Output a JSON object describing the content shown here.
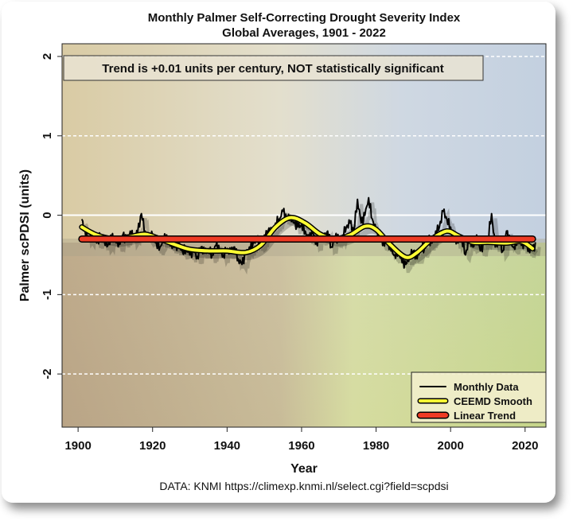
{
  "chart_data": {
    "type": "line",
    "title": "Monthly Palmer Self-Correcting Drought Severity Index",
    "subtitle": "Global Averages, 1901 - 2022",
    "xlabel": "Year",
    "ylabel": "Palmer scPDSI (units)",
    "xlim": [
      1895.7,
      2025.6
    ],
    "ylim": [
      -2.67,
      2.16
    ],
    "xticks": [
      1900,
      1920,
      1940,
      1960,
      1980,
      2000,
      2020
    ],
    "yticks": [
      2,
      1,
      0,
      -1,
      -2
    ],
    "yticks_labels": [
      "2",
      "1",
      "0",
      "-1",
      "-2"
    ],
    "grid": "horizontal dashed white, solid at zero",
    "annotation": "Trend is +0.01 units per century, NOT statistically significant",
    "source": "DATA: KNMI https://climexp.knmi.nl/select.cgi?field=scpdsi",
    "legend": {
      "placement": "bottom-right",
      "entries": [
        "Monthly Data",
        "CEEMD Smooth",
        "Linear Trend"
      ]
    },
    "colors": {
      "monthly": "#000000",
      "smooth": "#ffff33",
      "trend": "#ee3b24"
    },
    "series": [
      {
        "name": "Monthly Data",
        "note": "approximate annual-resolution readings",
        "x_start": 1901,
        "values": [
          -0.05,
          -0.25,
          -0.3,
          -0.2,
          -0.35,
          -0.25,
          -0.3,
          -0.38,
          -0.28,
          -0.3,
          -0.35,
          -0.25,
          -0.32,
          -0.2,
          -0.3,
          -0.22,
          0.02,
          -0.2,
          -0.3,
          -0.25,
          -0.35,
          -0.4,
          -0.3,
          -0.28,
          -0.35,
          -0.4,
          -0.38,
          -0.45,
          -0.42,
          -0.5,
          -0.45,
          -0.52,
          -0.4,
          -0.48,
          -0.42,
          -0.5,
          -0.38,
          -0.45,
          -0.5,
          -0.42,
          -0.48,
          -0.4,
          -0.55,
          -0.62,
          -0.48,
          -0.4,
          -0.35,
          -0.3,
          -0.38,
          -0.25,
          -0.2,
          -0.22,
          -0.1,
          -0.05,
          0.05,
          -0.05,
          0.0,
          -0.1,
          -0.15,
          -0.12,
          -0.2,
          -0.3,
          -0.22,
          -0.35,
          -0.25,
          -0.3,
          -0.2,
          -0.4,
          -0.28,
          -0.3,
          -0.25,
          -0.15,
          -0.1,
          -0.2,
          0.2,
          -0.1,
          0.0,
          0.22,
          -0.05,
          -0.2,
          -0.25,
          -0.35,
          -0.3,
          -0.45,
          -0.5,
          -0.45,
          -0.6,
          -0.62,
          -0.5,
          -0.45,
          -0.55,
          -0.4,
          -0.42,
          -0.3,
          -0.35,
          -0.2,
          -0.15,
          0.05,
          -0.05,
          -0.15,
          -0.25,
          -0.35,
          -0.28,
          -0.5,
          -0.3,
          -0.4,
          -0.25,
          -0.45,
          -0.35,
          -0.3,
          0.02,
          -0.4,
          -0.3,
          -0.45,
          -0.2,
          -0.35,
          -0.4,
          -0.3,
          -0.38,
          -0.35,
          -0.42,
          -0.4
        ]
      },
      {
        "name": "CEEMD Smooth",
        "x": [
          1901,
          1905,
          1910,
          1914,
          1918,
          1922,
          1926,
          1930,
          1935,
          1940,
          1945,
          1949,
          1953,
          1957,
          1961,
          1965,
          1969,
          1973,
          1977,
          1980,
          1984,
          1988,
          1991,
          1995,
          1999,
          2002,
          2006,
          2010,
          2015,
          2019,
          2022
        ],
        "y": [
          -0.15,
          -0.25,
          -0.3,
          -0.27,
          -0.24,
          -0.3,
          -0.37,
          -0.43,
          -0.45,
          -0.45,
          -0.47,
          -0.38,
          -0.15,
          -0.03,
          -0.1,
          -0.24,
          -0.3,
          -0.25,
          -0.14,
          -0.18,
          -0.38,
          -0.53,
          -0.47,
          -0.3,
          -0.2,
          -0.26,
          -0.34,
          -0.34,
          -0.35,
          -0.33,
          -0.42
        ]
      },
      {
        "name": "Linear Trend",
        "x": [
          1901,
          2022
        ],
        "y": [
          -0.3,
          -0.3
        ]
      }
    ]
  }
}
